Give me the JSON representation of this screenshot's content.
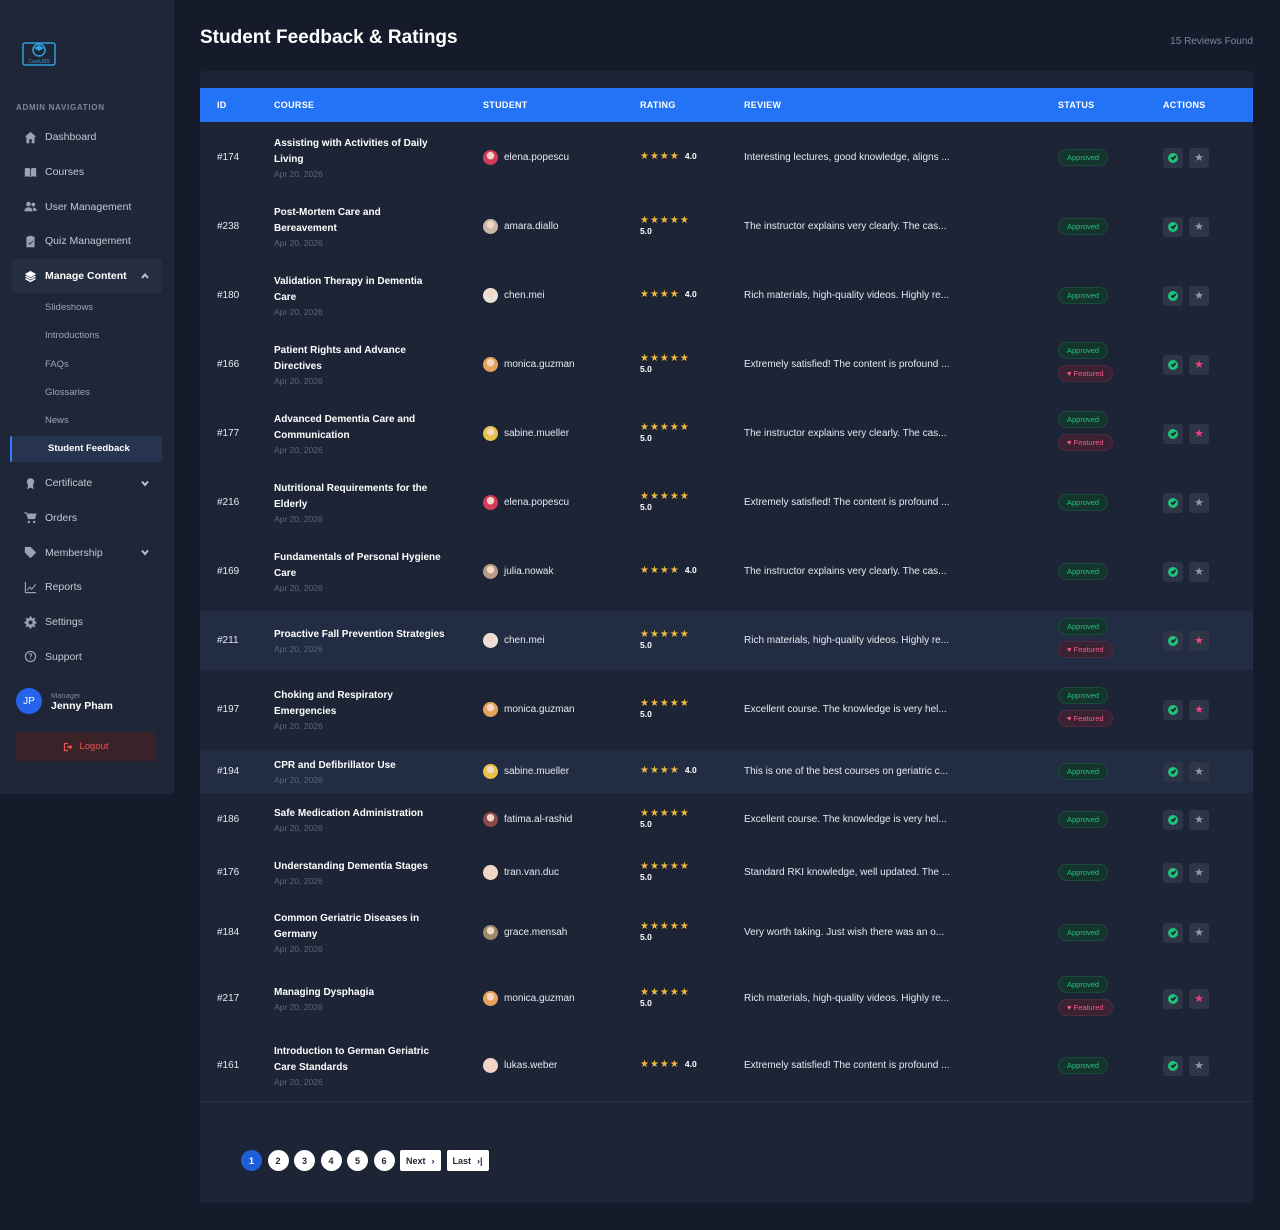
{
  "sidebar": {
    "logo_text": "CareLMS",
    "heading": "ADMIN NAVIGATION",
    "items": [
      {
        "label": "Dashboard",
        "icon": "home-icon"
      },
      {
        "label": "Courses",
        "icon": "book-icon"
      },
      {
        "label": "User Management",
        "icon": "users-icon"
      },
      {
        "label": "Quiz Management",
        "icon": "clipboard-check-icon"
      },
      {
        "label": "Manage Content",
        "icon": "layers-icon"
      },
      {
        "label": "Certificate",
        "icon": "award-icon"
      },
      {
        "label": "Orders",
        "icon": "cart-icon"
      },
      {
        "label": "Membership",
        "icon": "tag-icon"
      },
      {
        "label": "Reports",
        "icon": "chart-line-icon"
      },
      {
        "label": "Settings",
        "icon": "gear-icon"
      },
      {
        "label": "Support",
        "icon": "question-circle-icon"
      }
    ],
    "sub_items": [
      "Slideshows",
      "Introductions",
      "FAQs",
      "Glossaries",
      "News",
      "Student Feedback"
    ],
    "user": {
      "initials": "JP",
      "role": "Manager",
      "name": "Jenny Pham"
    },
    "logout_label": "Logout"
  },
  "header": {
    "title": "Student Feedback & Ratings",
    "count": "15 Reviews Found"
  },
  "table": {
    "columns": {
      "id": "ID",
      "course": "COURSE",
      "student": "STUDENT",
      "rating": "RATING",
      "review": "REVIEW",
      "status": "STATUS",
      "actions": "ACTIONS"
    },
    "rows": [
      {
        "id": "#174",
        "course": [
          "Assisting with Activities of Daily",
          "Living"
        ],
        "date": "Apr 20, 2026",
        "student": "elena.popescu",
        "avatar": "#d63a5a",
        "rating": "4.0",
        "stars": "★★★★",
        "inline": true,
        "review": "Interesting lectures, good knowledge, aligns ...",
        "featured": false,
        "hl": false
      },
      {
        "id": "#238",
        "course": [
          "Post-Mortem Care and",
          "Bereavement"
        ],
        "date": "Apr 20, 2026",
        "student": "amara.diallo",
        "avatar": "#c8b9a6",
        "rating": "5.0",
        "stars": "★★★★★",
        "inline": false,
        "review": "The instructor explains very clearly. The cas...",
        "featured": false,
        "hl": false
      },
      {
        "id": "#180",
        "course": [
          "Validation Therapy in Dementia",
          "Care"
        ],
        "date": "Apr 20, 2026",
        "student": "chen.mei",
        "avatar": "#e9e2d9",
        "rating": "4.0",
        "stars": "★★★★",
        "inline": true,
        "review": "Rich materials, high-quality videos. Highly re...",
        "featured": false,
        "hl": false
      },
      {
        "id": "#166",
        "course": [
          "Patient Rights and Advance",
          "Directives"
        ],
        "date": "Apr 20, 2026",
        "student": "monica.guzman",
        "avatar": "#e8a35a",
        "rating": "5.0",
        "stars": "★★★★★",
        "inline": false,
        "review": "Extremely satisfied! The content is profound ...",
        "featured": true,
        "hl": false
      },
      {
        "id": "#177",
        "course": [
          "Advanced Dementia Care and",
          "Communication"
        ],
        "date": "Apr 20, 2026",
        "student": "sabine.mueller",
        "avatar": "#e6c24a",
        "rating": "5.0",
        "stars": "★★★★★",
        "inline": false,
        "review": "The instructor explains very clearly. The cas...",
        "featured": true,
        "hl": false
      },
      {
        "id": "#216",
        "course": [
          "Nutritional Requirements for the",
          "Elderly"
        ],
        "date": "Apr 20, 2026",
        "student": "elena.popescu",
        "avatar": "#d63a5a",
        "rating": "5.0",
        "stars": "★★★★★",
        "inline": false,
        "review": "Extremely satisfied! The content is profound ...",
        "featured": false,
        "hl": false
      },
      {
        "id": "#169",
        "course": [
          "Fundamentals of Personal Hygiene",
          "Care"
        ],
        "date": "Apr 20, 2026",
        "student": "julia.nowak",
        "avatar": "#b89a86",
        "rating": "4.0",
        "stars": "★★★★",
        "inline": true,
        "review": "The instructor explains very clearly. The cas...",
        "featured": false,
        "hl": false
      },
      {
        "id": "#211",
        "course": [
          "Proactive Fall Prevention Strategies"
        ],
        "date": "Apr 20, 2026",
        "student": "chen.mei",
        "avatar": "#e9e2d9",
        "rating": "5.0",
        "stars": "★★★★★",
        "inline": false,
        "review": "Rich materials, high-quality videos. Highly re...",
        "featured": true,
        "hl": true
      },
      {
        "id": "#197",
        "course": [
          "Choking and Respiratory",
          "Emergencies"
        ],
        "date": "Apr 20, 2026",
        "student": "monica.guzman",
        "avatar": "#e8a35a",
        "rating": "5.0",
        "stars": "★★★★★",
        "inline": false,
        "review": "Excellent course. The knowledge is very hel...",
        "featured": true,
        "hl": false
      },
      {
        "id": "#194",
        "course": [
          "CPR and Defibrillator Use"
        ],
        "date": "Apr 20, 2026",
        "student": "sabine.mueller",
        "avatar": "#e6c24a",
        "rating": "4.0",
        "stars": "★★★★",
        "inline": true,
        "review": "This is one of the best courses on geriatric c...",
        "featured": false,
        "hl": true
      },
      {
        "id": "#186",
        "course": [
          "Safe Medication Administration"
        ],
        "date": "Apr 20, 2026",
        "student": "fatima.al-rashid",
        "avatar": "#8a4a4a",
        "rating": "5.0",
        "stars": "★★★★★",
        "inline": false,
        "review": "Excellent course. The knowledge is very hel...",
        "featured": false,
        "hl": false
      },
      {
        "id": "#176",
        "course": [
          "Understanding Dementia Stages"
        ],
        "date": "Apr 20, 2026",
        "student": "tran.van.duc",
        "avatar": "#f1d6c8",
        "rating": "5.0",
        "stars": "★★★★★",
        "inline": false,
        "review": "Standard RKI knowledge, well updated. The ...",
        "featured": false,
        "hl": false
      },
      {
        "id": "#184",
        "course": [
          "Common Geriatric Diseases in",
          "Germany"
        ],
        "date": "Apr 20, 2026",
        "student": "grace.mensah",
        "avatar": "#9b8b6b",
        "rating": "5.0",
        "stars": "★★★★★",
        "inline": false,
        "review": "Very worth taking. Just wish there was an o...",
        "featured": false,
        "hl": false
      },
      {
        "id": "#217",
        "course": [
          "Managing Dysphagia"
        ],
        "date": "Apr 20, 2026",
        "student": "monica.guzman",
        "avatar": "#e8a35a",
        "rating": "5.0",
        "stars": "★★★★★",
        "inline": false,
        "review": "Rich materials, high-quality videos. Highly re...",
        "featured": true,
        "hl": false
      },
      {
        "id": "#161",
        "course": [
          "Introduction to German Geriatric",
          "Care Standards"
        ],
        "date": "Apr 20, 2026",
        "student": "lukas.weber",
        "avatar": "#f0d3c9",
        "rating": "4.0",
        "stars": "★★★★",
        "inline": true,
        "review": "Extremely satisfied! The content is profound ...",
        "featured": false,
        "hl": false
      }
    ],
    "status_approved": "Approved",
    "status_featured": "Featured"
  },
  "pagination": {
    "pages": [
      "1",
      "2",
      "3",
      "4",
      "5",
      "6"
    ],
    "current": "1",
    "next": "Next",
    "last": "Last"
  },
  "colors": {
    "accent": "#2273f5",
    "approved": "#21c27a",
    "featured": "#f05a8c",
    "star": "#f6b93b"
  }
}
